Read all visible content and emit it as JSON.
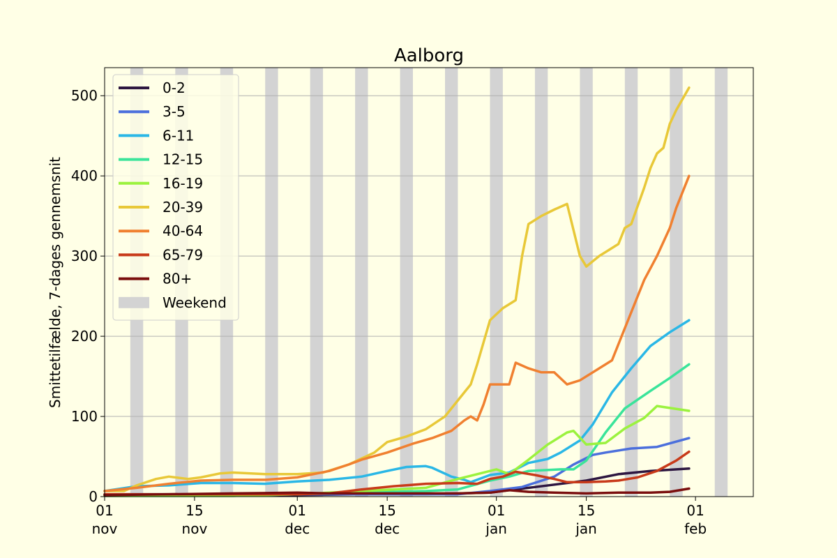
{
  "chart_data": {
    "type": "line",
    "title": "Aalborg",
    "ylabel": "Smittetilfælde, 7-dages gennemsnit",
    "xlabel": "",
    "x_start": "2020-11-01",
    "xlim_days": [
      0,
      101
    ],
    "ylim": [
      0,
      535
    ],
    "yticks": [
      0,
      100,
      200,
      300,
      400,
      500
    ],
    "xticks": [
      {
        "day": 0,
        "top": "01",
        "bottom": "nov"
      },
      {
        "day": 14,
        "top": "15",
        "bottom": "nov"
      },
      {
        "day": 30,
        "top": "01",
        "bottom": "dec"
      },
      {
        "day": 44,
        "top": "15",
        "bottom": "dec"
      },
      {
        "day": 61,
        "top": "01",
        "bottom": "jan"
      },
      {
        "day": 75,
        "top": "15",
        "bottom": "jan"
      },
      {
        "day": 92,
        "top": "01",
        "bottom": "feb"
      }
    ],
    "grid": "horizontal",
    "legend_position": "upper-left",
    "weekend_label": "Weekend",
    "weekend_color": "#d3d3d3",
    "weekends": [
      [
        4,
        6
      ],
      [
        11,
        13
      ],
      [
        18,
        20
      ],
      [
        25,
        27
      ],
      [
        32,
        34
      ],
      [
        39,
        41
      ],
      [
        46,
        48
      ],
      [
        53,
        55
      ],
      [
        60,
        62
      ],
      [
        67,
        69
      ],
      [
        74,
        76
      ],
      [
        81,
        83
      ],
      [
        88,
        90
      ],
      [
        95,
        97
      ]
    ],
    "series": [
      {
        "name": "0-2",
        "color": "#2d1640",
        "points": [
          [
            0,
            2
          ],
          [
            10,
            2
          ],
          [
            20,
            2
          ],
          [
            30,
            2
          ],
          [
            40,
            3
          ],
          [
            50,
            3
          ],
          [
            60,
            5
          ],
          [
            65,
            10
          ],
          [
            70,
            15
          ],
          [
            75,
            20
          ],
          [
            80,
            28
          ],
          [
            85,
            32
          ],
          [
            91,
            35
          ]
        ]
      },
      {
        "name": "3-5",
        "color": "#4b6fdc",
        "points": [
          [
            0,
            3
          ],
          [
            10,
            3
          ],
          [
            20,
            3
          ],
          [
            30,
            3
          ],
          [
            40,
            3
          ],
          [
            50,
            3
          ],
          [
            55,
            3
          ],
          [
            60,
            7
          ],
          [
            65,
            12
          ],
          [
            70,
            25
          ],
          [
            73,
            40
          ],
          [
            76,
            52
          ],
          [
            78,
            55
          ],
          [
            82,
            60
          ],
          [
            86,
            62
          ],
          [
            91,
            73
          ]
        ]
      },
      {
        "name": "6-11",
        "color": "#2ab7e6",
        "points": [
          [
            0,
            7
          ],
          [
            5,
            13
          ],
          [
            10,
            14
          ],
          [
            15,
            17
          ],
          [
            20,
            17
          ],
          [
            25,
            16
          ],
          [
            30,
            19
          ],
          [
            35,
            21
          ],
          [
            40,
            25
          ],
          [
            44,
            32
          ],
          [
            47,
            37
          ],
          [
            50,
            38
          ],
          [
            51,
            36
          ],
          [
            54,
            25
          ],
          [
            56,
            21
          ],
          [
            57,
            18
          ],
          [
            60,
            27
          ],
          [
            63,
            30
          ],
          [
            66,
            42
          ],
          [
            69,
            47
          ],
          [
            71,
            55
          ],
          [
            74,
            70
          ],
          [
            76,
            90
          ],
          [
            79,
            130
          ],
          [
            82,
            160
          ],
          [
            85,
            188
          ],
          [
            88,
            205
          ],
          [
            91,
            220
          ]
        ]
      },
      {
        "name": "12-15",
        "color": "#3ae49a",
        "points": [
          [
            0,
            1
          ],
          [
            20,
            1
          ],
          [
            30,
            3
          ],
          [
            35,
            4
          ],
          [
            40,
            5
          ],
          [
            45,
            6
          ],
          [
            50,
            7
          ],
          [
            55,
            9
          ],
          [
            60,
            20
          ],
          [
            63,
            25
          ],
          [
            66,
            32
          ],
          [
            71,
            34
          ],
          [
            73,
            34
          ],
          [
            75,
            45
          ],
          [
            78,
            80
          ],
          [
            81,
            110
          ],
          [
            85,
            132
          ],
          [
            88,
            148
          ],
          [
            91,
            165
          ]
        ]
      },
      {
        "name": "16-19",
        "color": "#9bf23e",
        "points": [
          [
            0,
            1
          ],
          [
            20,
            1
          ],
          [
            30,
            3
          ],
          [
            35,
            5
          ],
          [
            40,
            7
          ],
          [
            45,
            9
          ],
          [
            50,
            11
          ],
          [
            55,
            22
          ],
          [
            58,
            28
          ],
          [
            61,
            34
          ],
          [
            63,
            28
          ],
          [
            66,
            46
          ],
          [
            69,
            65
          ],
          [
            72,
            80
          ],
          [
            73,
            82
          ],
          [
            75,
            65
          ],
          [
            78,
            67
          ],
          [
            81,
            85
          ],
          [
            84,
            98
          ],
          [
            86,
            113
          ],
          [
            91,
            107
          ]
        ]
      },
      {
        "name": "20-39",
        "color": "#e8c838",
        "points": [
          [
            0,
            7
          ],
          [
            3,
            7
          ],
          [
            5,
            14
          ],
          [
            8,
            22
          ],
          [
            10,
            25
          ],
          [
            13,
            22
          ],
          [
            15,
            24
          ],
          [
            18,
            29
          ],
          [
            20,
            30
          ],
          [
            25,
            28
          ],
          [
            30,
            28
          ],
          [
            34,
            30
          ],
          [
            38,
            40
          ],
          [
            42,
            55
          ],
          [
            44,
            68
          ],
          [
            47,
            75
          ],
          [
            50,
            84
          ],
          [
            53,
            100
          ],
          [
            56,
            130
          ],
          [
            57,
            140
          ],
          [
            58,
            165
          ],
          [
            60,
            220
          ],
          [
            62,
            235
          ],
          [
            64,
            245
          ],
          [
            65,
            300
          ],
          [
            66,
            340
          ],
          [
            68,
            350
          ],
          [
            70,
            358
          ],
          [
            72,
            365
          ],
          [
            74,
            300
          ],
          [
            75,
            287
          ],
          [
            77,
            300
          ],
          [
            80,
            315
          ],
          [
            81,
            335
          ],
          [
            82,
            340
          ],
          [
            84,
            385
          ],
          [
            85,
            410
          ],
          [
            86,
            428
          ],
          [
            87,
            435
          ],
          [
            88,
            465
          ],
          [
            89,
            482
          ],
          [
            91,
            510
          ]
        ]
      },
      {
        "name": "40-64",
        "color": "#f08030",
        "points": [
          [
            0,
            7
          ],
          [
            5,
            11
          ],
          [
            10,
            16
          ],
          [
            15,
            20
          ],
          [
            20,
            21
          ],
          [
            25,
            21
          ],
          [
            30,
            24
          ],
          [
            35,
            32
          ],
          [
            38,
            40
          ],
          [
            40,
            46
          ],
          [
            44,
            55
          ],
          [
            48,
            66
          ],
          [
            51,
            73
          ],
          [
            54,
            82
          ],
          [
            56,
            95
          ],
          [
            57,
            100
          ],
          [
            58,
            95
          ],
          [
            59,
            115
          ],
          [
            60,
            140
          ],
          [
            63,
            140
          ],
          [
            64,
            167
          ],
          [
            66,
            160
          ],
          [
            68,
            155
          ],
          [
            70,
            155
          ],
          [
            72,
            140
          ],
          [
            74,
            145
          ],
          [
            77,
            160
          ],
          [
            79,
            170
          ],
          [
            80,
            190
          ],
          [
            81,
            210
          ],
          [
            84,
            270
          ],
          [
            86,
            300
          ],
          [
            88,
            335
          ],
          [
            89,
            360
          ],
          [
            91,
            400
          ]
        ]
      },
      {
        "name": "65-79",
        "color": "#c83a1a",
        "points": [
          [
            0,
            3
          ],
          [
            10,
            3
          ],
          [
            20,
            3
          ],
          [
            30,
            3
          ],
          [
            35,
            4
          ],
          [
            40,
            9
          ],
          [
            45,
            13
          ],
          [
            50,
            16
          ],
          [
            55,
            17
          ],
          [
            58,
            16
          ],
          [
            60,
            22
          ],
          [
            62,
            25
          ],
          [
            64,
            31
          ],
          [
            67,
            27
          ],
          [
            70,
            22
          ],
          [
            72,
            18
          ],
          [
            75,
            18
          ],
          [
            78,
            19
          ],
          [
            80,
            20
          ],
          [
            83,
            24
          ],
          [
            86,
            32
          ],
          [
            89,
            45
          ],
          [
            91,
            56
          ]
        ]
      },
      {
        "name": "80+",
        "color": "#7a0e0e",
        "points": [
          [
            0,
            2
          ],
          [
            10,
            3
          ],
          [
            20,
            4
          ],
          [
            30,
            5
          ],
          [
            35,
            4
          ],
          [
            40,
            4
          ],
          [
            50,
            4
          ],
          [
            55,
            4
          ],
          [
            60,
            5
          ],
          [
            63,
            8
          ],
          [
            66,
            6
          ],
          [
            70,
            5
          ],
          [
            75,
            4
          ],
          [
            80,
            5
          ],
          [
            85,
            5
          ],
          [
            88,
            6
          ],
          [
            91,
            10
          ]
        ]
      }
    ]
  }
}
